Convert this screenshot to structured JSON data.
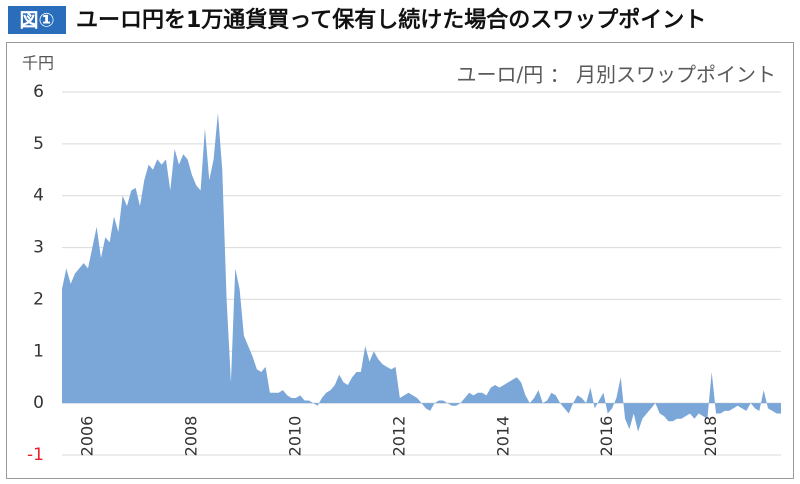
{
  "figure_label": "図①",
  "chart_data": {
    "type": "area",
    "title": "ユーロ円を1万通貨買って保有し続けた場合のスワップポイント",
    "annotation": "ユーロ/円 ： 月別スワップポイント",
    "y_label": "千円",
    "color": "#7aa6d8",
    "negative_tick_color": "#e8202a",
    "grid": true,
    "ylim": [
      -1,
      6
    ],
    "yticks": [
      -1,
      0,
      1,
      2,
      3,
      4,
      5,
      6
    ],
    "categories": [
      null,
      null,
      null,
      null,
      null,
      null,
      "2006",
      null,
      null,
      null,
      null,
      null,
      null,
      null,
      null,
      null,
      null,
      null,
      null,
      null,
      null,
      null,
      null,
      null,
      null,
      null,
      null,
      null,
      null,
      null,
      "2008",
      null,
      null,
      null,
      null,
      null,
      null,
      null,
      null,
      null,
      null,
      null,
      null,
      null,
      null,
      null,
      null,
      null,
      null,
      null,
      null,
      null,
      null,
      null,
      "2010",
      null,
      null,
      null,
      null,
      null,
      null,
      null,
      null,
      null,
      null,
      null,
      null,
      null,
      null,
      null,
      null,
      null,
      null,
      null,
      null,
      null,
      null,
      null,
      "2012",
      null,
      null,
      null,
      null,
      null,
      null,
      null,
      null,
      null,
      null,
      null,
      null,
      null,
      null,
      null,
      null,
      null,
      null,
      null,
      null,
      null,
      null,
      null,
      "2014",
      null,
      null,
      null,
      null,
      null,
      null,
      null,
      null,
      null,
      null,
      null,
      null,
      null,
      null,
      null,
      null,
      null,
      null,
      null,
      null,
      null,
      null,
      null,
      "2016",
      null,
      null,
      null,
      null,
      null,
      null,
      null,
      null,
      null,
      null,
      null,
      null,
      null,
      null,
      null,
      null,
      null,
      null,
      null,
      null,
      null,
      null,
      null,
      "2018",
      null,
      null,
      null,
      null,
      null,
      null,
      null,
      null,
      null,
      null,
      null,
      null,
      null,
      null,
      null,
      null
    ],
    "values": [
      2.2,
      2.6,
      2.3,
      2.5,
      2.6,
      2.7,
      2.6,
      3.0,
      3.4,
      2.8,
      3.2,
      3.1,
      3.6,
      3.3,
      4.0,
      3.8,
      4.1,
      4.15,
      3.8,
      4.3,
      4.6,
      4.5,
      4.7,
      4.6,
      4.7,
      4.1,
      4.9,
      4.6,
      4.8,
      4.7,
      4.4,
      4.2,
      4.1,
      5.3,
      4.3,
      4.7,
      5.6,
      4.5,
      2.0,
      0.4,
      2.6,
      2.2,
      1.3,
      1.1,
      0.9,
      0.65,
      0.6,
      0.7,
      0.2,
      0.2,
      0.2,
      0.25,
      0.15,
      0.1,
      0.1,
      0.15,
      0.05,
      0.05,
      0.0,
      -0.05,
      0.1,
      0.2,
      0.25,
      0.35,
      0.55,
      0.4,
      0.35,
      0.5,
      0.6,
      0.6,
      1.1,
      0.8,
      1.0,
      0.85,
      0.75,
      0.7,
      0.65,
      0.7,
      0.1,
      0.15,
      0.2,
      0.15,
      0.1,
      0.0,
      -0.1,
      -0.15,
      0.0,
      0.05,
      0.05,
      0.0,
      -0.05,
      -0.05,
      0.0,
      0.1,
      0.2,
      0.15,
      0.2,
      0.2,
      0.15,
      0.3,
      0.35,
      0.3,
      0.35,
      0.4,
      0.45,
      0.5,
      0.4,
      0.15,
      0.0,
      0.1,
      0.25,
      0.0,
      0.05,
      0.2,
      0.15,
      0.0,
      -0.1,
      -0.2,
      0.0,
      0.15,
      0.1,
      0.0,
      0.3,
      -0.1,
      0.05,
      0.2,
      -0.2,
      -0.1,
      0.1,
      0.5,
      -0.3,
      -0.5,
      -0.2,
      -0.55,
      -0.3,
      -0.2,
      -0.1,
      0.0,
      -0.2,
      -0.25,
      -0.35,
      -0.35,
      -0.3,
      -0.3,
      -0.25,
      -0.2,
      -0.3,
      -0.2,
      -0.25,
      -0.3,
      0.6,
      -0.2,
      -0.2,
      -0.15,
      -0.15,
      -0.1,
      -0.05,
      -0.1,
      -0.15,
      0.0,
      -0.1,
      -0.15,
      0.25,
      -0.1,
      -0.15,
      -0.2,
      -0.2
    ]
  }
}
